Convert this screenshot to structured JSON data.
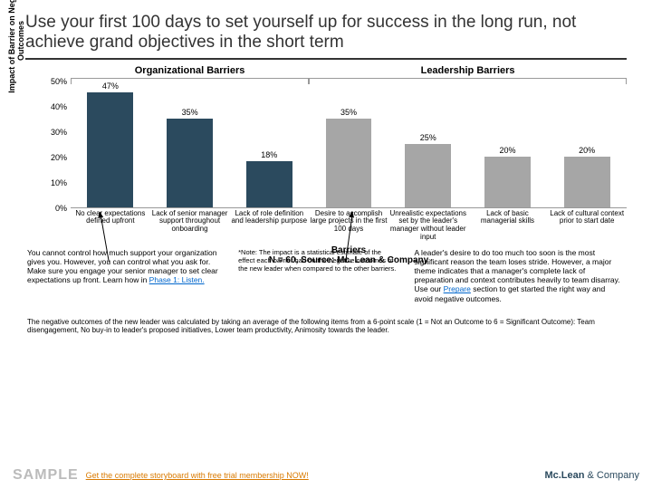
{
  "title": "Use your first 100 days to set yourself up for success in the long run, not achieve grand objectives in the short term",
  "groups": [
    {
      "label": "Organizational Barriers",
      "span": 3
    },
    {
      "label": "Leadership Barriers",
      "span": 4
    }
  ],
  "chart": {
    "type": "bar",
    "y_title": "Impact of Barrier on Negati\nOutcomes",
    "ymax": 50,
    "ytick_step": 10,
    "y_suffix": "%",
    "colors": {
      "org": "#2b4a5e",
      "lead": "#a6a6a6"
    },
    "bars": [
      {
        "label": "No clear expectations defined upfront",
        "value": 47,
        "group": "org"
      },
      {
        "label": "Lack of senior manager support throughout onboarding",
        "value": 35,
        "group": "org"
      },
      {
        "label": "Lack of role definition and leadership purpose",
        "value": 18,
        "group": "org"
      },
      {
        "label": "Desire to accomplish large projects in the first 100 days",
        "value": 35,
        "group": "lead"
      },
      {
        "label": "Unrealistic expectations set by the leader's manager without leader input",
        "value": 25,
        "group": "lead"
      },
      {
        "label": "Lack of basic managerial skills",
        "value": 20,
        "group": "lead"
      },
      {
        "label": "Lack of cultural context prior to start date",
        "value": 20,
        "group": "lead"
      }
    ],
    "x_title": "Barriers\nN = 60, Source: Mc. Lean & Company"
  },
  "notes": {
    "left_a": "You cannot control how much support your organization gives you. However, you can control what you ask for. Make sure you engage your senior manager to set clear expectations up front. Learn how in ",
    "left_link": "Phase 1: Listen.",
    "mid": "*Note: The impact is a statistical estimate of the effect each barrier had on the negative outcomes of the new leader when compared to the other barriers.",
    "right_a": "A leader's desire to do too much too soon is the most significant reason the team loses stride. However, a major theme indicates that a manager's complete lack of preparation and context contributes heavily to team disarray. Use our ",
    "right_link": "Prepare",
    "right_b": " section to get started the right way and avoid negative outcomes."
  },
  "footer": "The negative outcomes of the new leader was calculated by taking an average of the following items from a 6-point scale (1 = Not an Outcome to 6 = Significant Outcome): Team disengagement, No buy-in to leader's proposed initiatives, Lower team productivity, Animosity towards the leader.",
  "bottom": {
    "sample": "SAMPLE",
    "cta": "Get the complete storyboard with free trial membership NOW!",
    "logo_a": "Mc.Lean",
    "logo_b": "& Company"
  }
}
